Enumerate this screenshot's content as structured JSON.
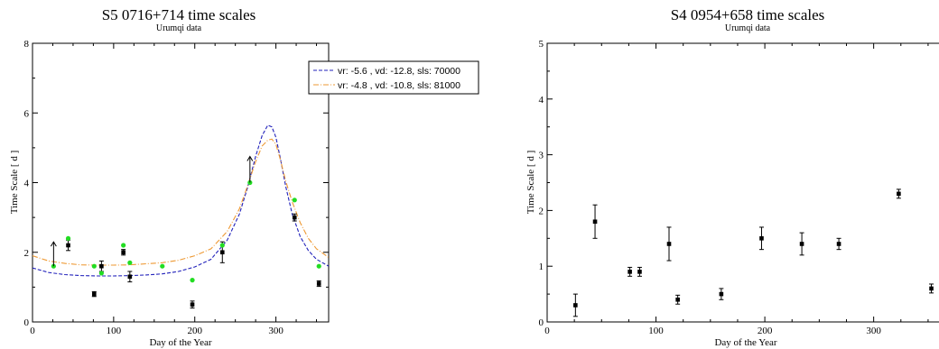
{
  "chart_data": [
    {
      "type": "scatter",
      "title": "S5 0716+714 time scales",
      "subtitle": "Urumqi data",
      "xlabel": "Day of the Year",
      "ylabel": "Time Scale [ d ]",
      "xlim": [
        0,
        365
      ],
      "ylim": [
        0,
        8
      ],
      "xticks": [
        0,
        100,
        200,
        300
      ],
      "yticks": [
        0,
        2,
        4,
        6,
        8
      ],
      "legend_position": "top-right",
      "series": [
        {
          "kind": "errorbar-points",
          "color": "#000000",
          "points": [
            {
              "x": 44,
              "y": 2.2,
              "err": 0.15
            },
            {
              "x": 76,
              "y": 0.8,
              "err": 0.07
            },
            {
              "x": 85,
              "y": 1.6,
              "err": 0.15
            },
            {
              "x": 112,
              "y": 2.0,
              "err": 0.08
            },
            {
              "x": 120,
              "y": 1.3,
              "err": 0.15
            },
            {
              "x": 197,
              "y": 0.5,
              "err": 0.1
            },
            {
              "x": 234,
              "y": 2.0,
              "err": 0.3
            },
            {
              "x": 323,
              "y": 3.0,
              "err": 0.1
            },
            {
              "x": 353,
              "y": 1.1,
              "err": 0.08
            }
          ]
        },
        {
          "kind": "points",
          "color": "#22dd22",
          "points": [
            {
              "x": 26,
              "y": 1.6
            },
            {
              "x": 44,
              "y": 2.4
            },
            {
              "x": 76,
              "y": 1.6
            },
            {
              "x": 85,
              "y": 1.4
            },
            {
              "x": 112,
              "y": 2.2
            },
            {
              "x": 120,
              "y": 1.7
            },
            {
              "x": 160,
              "y": 1.6
            },
            {
              "x": 197,
              "y": 1.2
            },
            {
              "x": 234,
              "y": 2.2
            },
            {
              "x": 268,
              "y": 4.0
            },
            {
              "x": 323,
              "y": 3.5
            },
            {
              "x": 353,
              "y": 1.6
            }
          ]
        },
        {
          "kind": "lower-limit-arrows",
          "color": "#000000",
          "arrows": [
            {
              "x": 26,
              "y_from": 1.6,
              "y_to": 2.3
            },
            {
              "x": 268,
              "y_from": 4.0,
              "y_to": 4.75
            }
          ]
        },
        {
          "kind": "model-curve",
          "name": "vr: -5.6 , vd: -12.8,  sls: 70000",
          "color": "#2222bb",
          "x": [
            0,
            20,
            40,
            60,
            80,
            100,
            120,
            140,
            160,
            180,
            200,
            220,
            240,
            255,
            265,
            275,
            283,
            290,
            295,
            300,
            305,
            312,
            320,
            330,
            340,
            350,
            365
          ],
          "y": [
            1.55,
            1.42,
            1.36,
            1.33,
            1.32,
            1.32,
            1.33,
            1.35,
            1.38,
            1.45,
            1.58,
            1.8,
            2.35,
            3.1,
            3.85,
            4.75,
            5.35,
            5.65,
            5.6,
            5.3,
            4.75,
            3.9,
            3.1,
            2.45,
            2.05,
            1.8,
            1.6
          ]
        },
        {
          "kind": "model-curve",
          "name": "vr: -4.8 , vd: -10.8,  sls: 81000",
          "color": "#ee9933",
          "x": [
            0,
            20,
            40,
            60,
            80,
            100,
            120,
            140,
            160,
            180,
            200,
            220,
            240,
            255,
            265,
            275,
            283,
            290,
            295,
            300,
            305,
            312,
            320,
            330,
            340,
            350,
            365
          ],
          "y": [
            1.9,
            1.75,
            1.68,
            1.64,
            1.63,
            1.63,
            1.64,
            1.67,
            1.7,
            1.77,
            1.9,
            2.1,
            2.6,
            3.25,
            3.9,
            4.6,
            5.05,
            5.22,
            5.25,
            5.1,
            4.7,
            4.05,
            3.45,
            2.85,
            2.4,
            2.1,
            1.85
          ]
        }
      ]
    },
    {
      "type": "scatter",
      "title": "S4 0954+658 time scales",
      "subtitle": "Urumqi data",
      "xlabel": "Day of the Year",
      "ylabel": "Time Scale [ d ]",
      "xlim": [
        0,
        365
      ],
      "ylim": [
        0,
        5
      ],
      "xticks": [
        0,
        100,
        200,
        300
      ],
      "yticks": [
        0,
        1,
        2,
        3,
        4,
        5
      ],
      "series": [
        {
          "kind": "errorbar-points",
          "color": "#000000",
          "points": [
            {
              "x": 26,
              "y": 0.3,
              "err": 0.2
            },
            {
              "x": 44,
              "y": 1.8,
              "err": 0.3
            },
            {
              "x": 76,
              "y": 0.9,
              "err": 0.08
            },
            {
              "x": 85,
              "y": 0.9,
              "err": 0.08
            },
            {
              "x": 112,
              "y": 1.4,
              "err": 0.3
            },
            {
              "x": 120,
              "y": 0.4,
              "err": 0.08
            },
            {
              "x": 160,
              "y": 0.5,
              "err": 0.1
            },
            {
              "x": 197,
              "y": 1.5,
              "err": 0.2
            },
            {
              "x": 234,
              "y": 1.4,
              "err": 0.2
            },
            {
              "x": 268,
              "y": 1.4,
              "err": 0.1
            },
            {
              "x": 323,
              "y": 2.3,
              "err": 0.08
            },
            {
              "x": 353,
              "y": 0.6,
              "err": 0.08
            }
          ]
        }
      ]
    }
  ]
}
